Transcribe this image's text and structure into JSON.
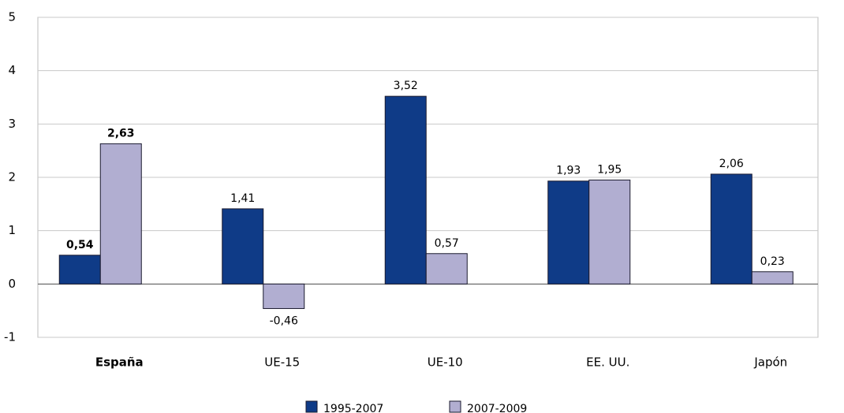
{
  "chart_data": {
    "type": "bar",
    "categories": [
      "España",
      "UE-15",
      "UE-10",
      "EE. UU.",
      "Japón"
    ],
    "series": [
      {
        "name": "1995-2007",
        "color": "#0f3b87",
        "values": [
          0.54,
          1.41,
          3.52,
          1.93,
          2.06
        ],
        "value_labels": [
          "0,54",
          "1,41",
          "3,52",
          "1,93",
          "2,06"
        ]
      },
      {
        "name": "2007-2009",
        "color": "#b1aed1",
        "values": [
          2.63,
          -0.46,
          0.57,
          1.95,
          0.23
        ],
        "value_labels": [
          "2,63",
          "-0,46",
          "0,57",
          "1,95",
          "0,23"
        ]
      }
    ],
    "ylim": [
      -1,
      5
    ],
    "yticks": [
      -1,
      0,
      1,
      2,
      3,
      4,
      5
    ],
    "grid": true,
    "legend": "bottom"
  }
}
